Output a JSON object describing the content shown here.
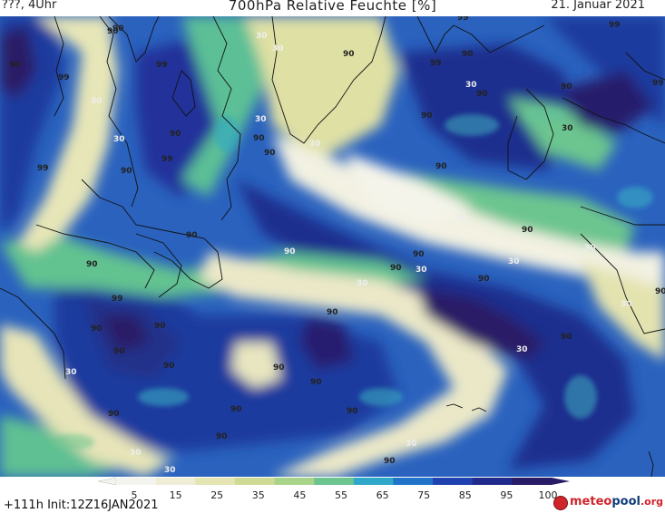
{
  "header": {
    "left": "???, 4Uhr",
    "title": "700hPa Relative Feuchte [%]",
    "date": "21. Januar 2021"
  },
  "footer": {
    "run_info": "+111h  Init:12Z16JAN2021",
    "brand_part1": "meteo",
    "brand_part2": "pool",
    "brand_part3": ".org"
  },
  "colorbar": {
    "ticks": [
      "5",
      "15",
      "25",
      "35",
      "45",
      "55",
      "65",
      "75",
      "85",
      "95",
      "100"
    ],
    "colors": [
      "#f4f4ee",
      "#efedd6",
      "#e4e5b2",
      "#cfdb94",
      "#a8d48a",
      "#6cc58f",
      "#2fa7c8",
      "#1f74c9",
      "#2042b0",
      "#1f2a8a",
      "#2a1b66"
    ]
  },
  "map_labels": [
    {
      "text": "90"
    },
    {
      "text": "99"
    },
    {
      "text": "90"
    },
    {
      "text": "30"
    },
    {
      "text": "99"
    },
    {
      "text": "90"
    },
    {
      "text": "30"
    },
    {
      "text": "99"
    },
    {
      "text": "90"
    },
    {
      "text": "90"
    },
    {
      "text": "99"
    },
    {
      "text": "99"
    },
    {
      "text": "30"
    },
    {
      "text": "90"
    },
    {
      "text": "90"
    },
    {
      "text": "99"
    },
    {
      "text": "30"
    },
    {
      "text": "30"
    },
    {
      "text": "90"
    },
    {
      "text": "30"
    },
    {
      "text": "90"
    },
    {
      "text": "99"
    },
    {
      "text": "90"
    },
    {
      "text": "30"
    },
    {
      "text": "30"
    },
    {
      "text": "90"
    },
    {
      "text": "90"
    },
    {
      "text": "99"
    },
    {
      "text": "90"
    },
    {
      "text": "30"
    },
    {
      "text": "90"
    },
    {
      "text": "90"
    },
    {
      "text": "30"
    },
    {
      "text": "90"
    },
    {
      "text": "90"
    },
    {
      "text": "30"
    },
    {
      "text": "90"
    },
    {
      "text": "90"
    },
    {
      "text": "30"
    },
    {
      "text": "90"
    },
    {
      "text": "90"
    },
    {
      "text": "30"
    },
    {
      "text": "90"
    },
    {
      "text": "90"
    },
    {
      "text": "90"
    },
    {
      "text": "90"
    },
    {
      "text": "90"
    },
    {
      "text": "30"
    },
    {
      "text": "90"
    },
    {
      "text": "90"
    },
    {
      "text": "90"
    },
    {
      "text": "90"
    },
    {
      "text": "30"
    },
    {
      "text": "90"
    },
    {
      "text": "30"
    },
    {
      "text": "30"
    },
    {
      "text": "90"
    },
    {
      "text": "30"
    },
    {
      "text": "90"
    },
    {
      "text": "99"
    },
    {
      "text": "90"
    },
    {
      "text": "30"
    }
  ]
}
